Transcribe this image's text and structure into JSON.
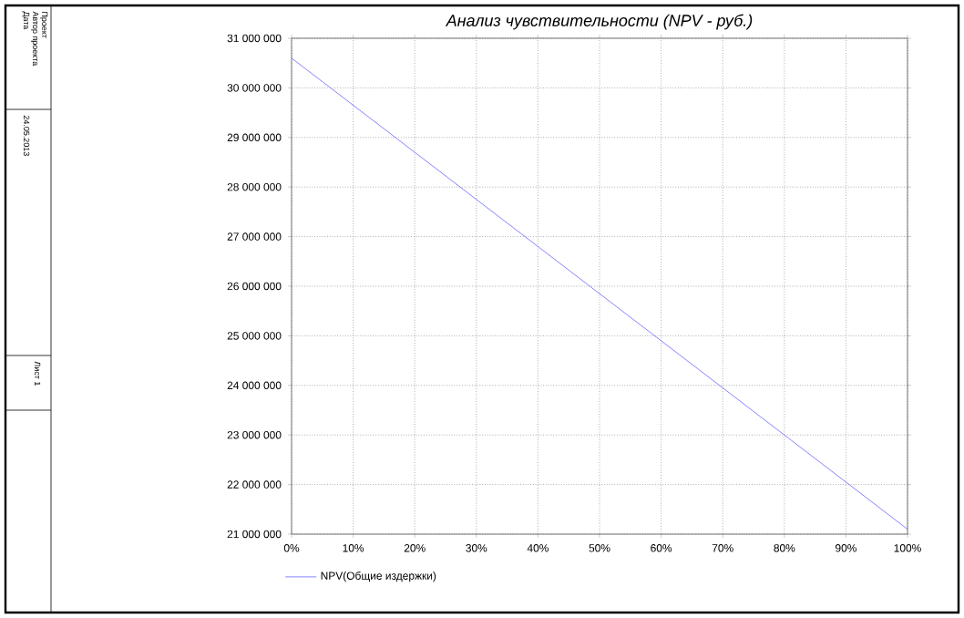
{
  "chart_data": {
    "type": "line",
    "title": "Анализ чувствительности (NPV - руб.)",
    "x": [
      0,
      10,
      20,
      30,
      40,
      50,
      60,
      70,
      80,
      90,
      100
    ],
    "series": [
      {
        "name": "NPV(Общие издержки)",
        "color": "#6666ff",
        "values": [
          30600000,
          29650000,
          28700000,
          27750000,
          26800000,
          25850000,
          24900000,
          23950000,
          23000000,
          22050000,
          21100000
        ]
      }
    ],
    "xlim": [
      0,
      100
    ],
    "xticks": [
      {
        "value": 0,
        "label": "0%"
      },
      {
        "value": 10,
        "label": "10%"
      },
      {
        "value": 20,
        "label": "20%"
      },
      {
        "value": 30,
        "label": "30%"
      },
      {
        "value": 40,
        "label": "40%"
      },
      {
        "value": 50,
        "label": "50%"
      },
      {
        "value": 60,
        "label": "60%"
      },
      {
        "value": 70,
        "label": "70%"
      },
      {
        "value": 80,
        "label": "80%"
      },
      {
        "value": 90,
        "label": "90%"
      },
      {
        "value": 100,
        "label": "100%"
      }
    ],
    "ylim": [
      21000000,
      31000000
    ],
    "yticks": [
      {
        "value": 21000000,
        "label": "21 000 000"
      },
      {
        "value": 22000000,
        "label": "22 000 000"
      },
      {
        "value": 23000000,
        "label": "23 000 000"
      },
      {
        "value": 24000000,
        "label": "24 000 000"
      },
      {
        "value": 25000000,
        "label": "25 000 000"
      },
      {
        "value": 26000000,
        "label": "26 000 000"
      },
      {
        "value": 27000000,
        "label": "27 000 000"
      },
      {
        "value": 28000000,
        "label": "28 000 000"
      },
      {
        "value": 29000000,
        "label": "29 000 000"
      },
      {
        "value": 30000000,
        "label": "30 000 000"
      },
      {
        "value": 31000000,
        "label": "31 000 000"
      }
    ],
    "grid": true,
    "legend": "bottom left",
    "marker": "none",
    "line_style": "solid",
    "annotations": [
      "Проект",
      "Автор проекта",
      "Дата",
      "24.05.2013",
      "Лист 1"
    ]
  }
}
